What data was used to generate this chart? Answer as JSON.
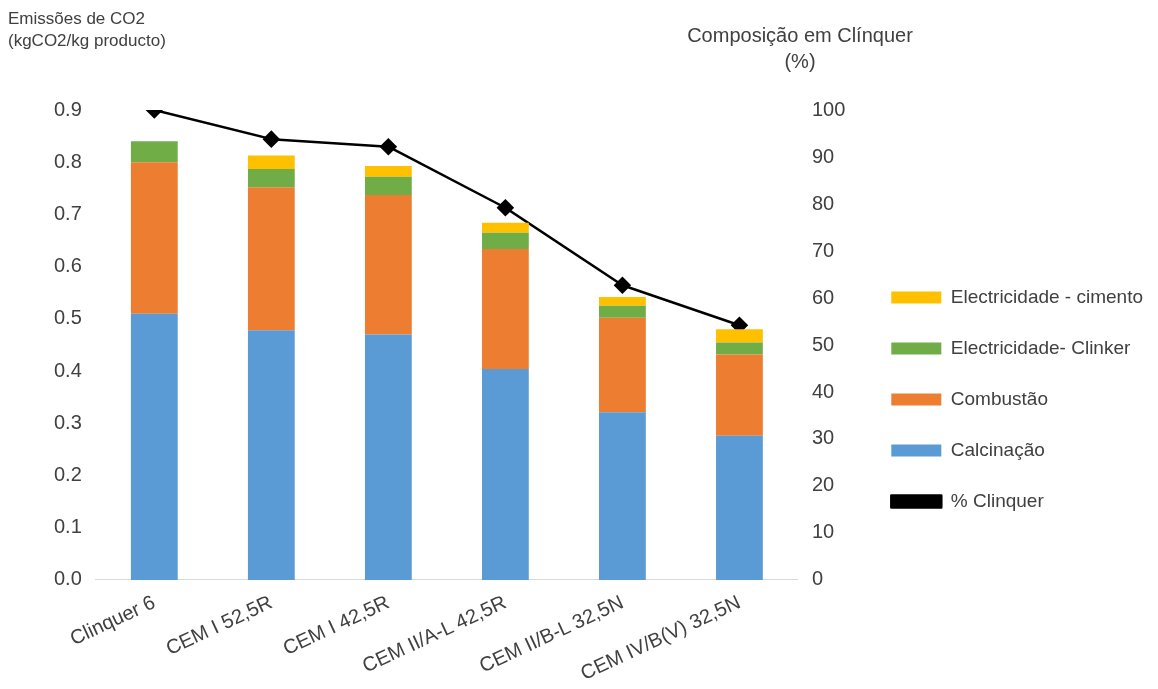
{
  "chart_data": {
    "type": "bar",
    "stacked": true,
    "ylabel": "Emissões de CO2\n(kgCO2/kg producto)",
    "y2label": "Composição em Clínquer\n(%)",
    "categories": [
      "Clinquer 6",
      "CEM I 52,5R",
      "CEM I 42,5R",
      "CEM II/A-L 42,5R",
      "CEM II/B-L 32,5N",
      "CEM IV/B(V) 32,5N"
    ],
    "series": [
      {
        "name": "Calcinação",
        "color": "#5b9bd5",
        "values": [
          0.51,
          0.478,
          0.47,
          0.404,
          0.321,
          0.276
        ]
      },
      {
        "name": "Combustão",
        "color": "#ed7d31",
        "values": [
          0.29,
          0.274,
          0.267,
          0.23,
          0.181,
          0.156
        ]
      },
      {
        "name": "Electricidade- Clinker",
        "color": "#70ad47",
        "values": [
          0.04,
          0.035,
          0.035,
          0.031,
          0.023,
          0.023
        ]
      },
      {
        "name": "Electricidade - cimento",
        "color": "#ffc000",
        "values": [
          0,
          0.026,
          0.021,
          0.019,
          0.017,
          0.025
        ]
      },
      {
        "name": "% Clinquer",
        "type": "line",
        "axis": "y2",
        "color": "#000000",
        "marker": "diamond",
        "values": [
          100,
          93.8,
          92.2,
          79.2,
          62.7,
          54.2
        ]
      }
    ],
    "ylim": [
      0,
      0.9
    ],
    "yticks": [
      {
        "value": 0,
        "label": "0.0"
      },
      {
        "value": 0.1,
        "label": "0.1"
      },
      {
        "value": 0.2,
        "label": "0.2"
      },
      {
        "value": 0.3,
        "label": "0.3"
      },
      {
        "value": 0.4,
        "label": "0.4"
      },
      {
        "value": 0.5,
        "label": "0.5"
      },
      {
        "value": 0.6,
        "label": "0.6"
      },
      {
        "value": 0.7,
        "label": "0.7"
      },
      {
        "value": 0.8,
        "label": "0.8"
      },
      {
        "value": 0.9,
        "label": "0.9"
      }
    ],
    "y2lim": [
      0,
      100
    ],
    "y2ticks": [
      0,
      10,
      20,
      30,
      40,
      50,
      60,
      70,
      80,
      90,
      100
    ],
    "legend": "right",
    "grid": false
  }
}
